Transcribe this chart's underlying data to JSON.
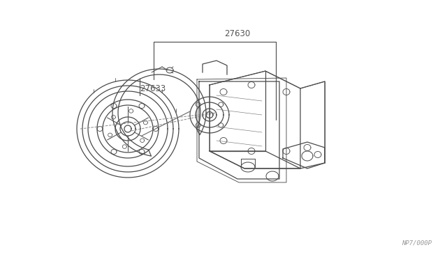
{
  "background_color": "#ffffff",
  "line_color": "#4a4a4a",
  "label_color": "#555555",
  "label_27630": "27630",
  "label_27633": "27633",
  "watermark": "NP7/000P",
  "lw": 0.9
}
